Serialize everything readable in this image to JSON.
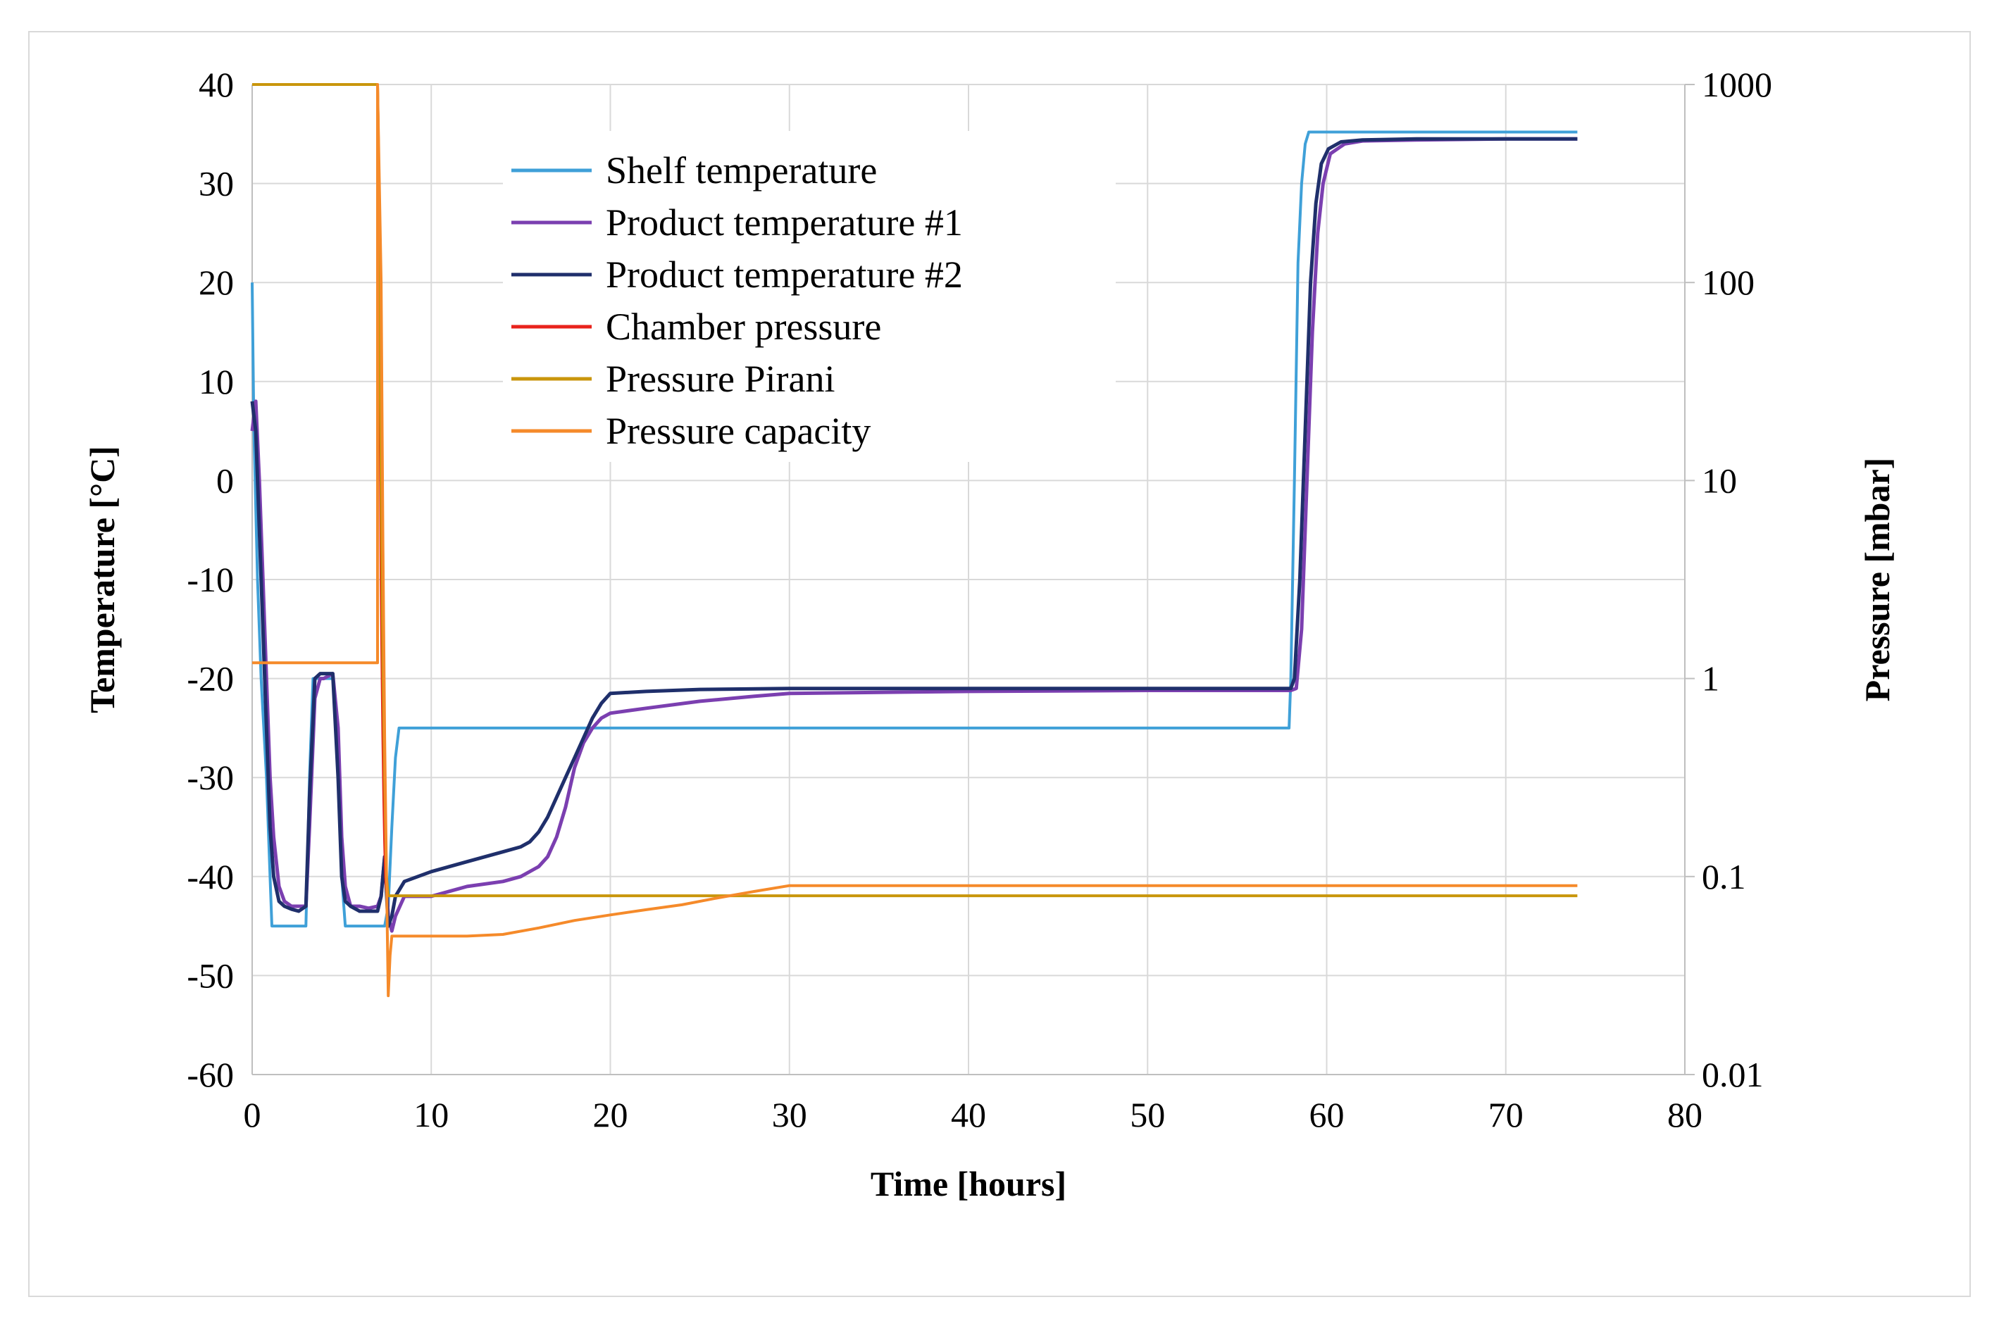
{
  "chart_data": {
    "type": "line",
    "title": "",
    "xlabel": "Time [hours]",
    "ylabel": "Temperature [°C]",
    "y2label": "Pressure [mbar]",
    "xlim": [
      0,
      80
    ],
    "ylim": [
      -60,
      40
    ],
    "y2lim": [
      0.01,
      1000
    ],
    "y2scale": "log",
    "grid": true,
    "legend_position": "top-center",
    "x_ticks": [
      "0",
      "10",
      "20",
      "30",
      "40",
      "50",
      "60",
      "70",
      "80"
    ],
    "y_ticks": [
      "40",
      "30",
      "20",
      "10",
      "0",
      "-10",
      "-20",
      "-30",
      "-40",
      "-50",
      "-60"
    ],
    "y2_ticks": [
      "1000",
      "100",
      "10",
      "1",
      "0.1",
      "0.01"
    ],
    "series": [
      {
        "name": "Shelf temperature",
        "axis": "left",
        "color": "#3fa0d8",
        "x": [
          0,
          0.05,
          0.1,
          0.3,
          0.5,
          0.8,
          1.0,
          1.1,
          1.5,
          2.0,
          2.5,
          3.0,
          3.2,
          3.4,
          3.6,
          4.0,
          4.5,
          4.8,
          5.0,
          5.2,
          5.5,
          6.0,
          6.5,
          7.0,
          7.4,
          7.6,
          7.8,
          8.0,
          8.2,
          20,
          40,
          57.9,
          58.0,
          58.2,
          58.4,
          58.6,
          58.8,
          59.0,
          59.2,
          60,
          65,
          70,
          74
        ],
        "y": [
          20,
          12,
          5,
          -10,
          -20,
          -30,
          -40,
          -45,
          -45,
          -45,
          -45,
          -45,
          -30,
          -20,
          -20,
          -20,
          -20,
          -25,
          -40,
          -45,
          -45,
          -45,
          -45,
          -45,
          -45,
          -43,
          -35,
          -28,
          -25,
          -25,
          -25,
          -25,
          -20,
          0,
          22,
          30,
          34,
          35.2,
          35.2,
          35.2,
          35.2,
          35.2,
          35.2
        ]
      },
      {
        "name": "Product temperature #1",
        "axis": "left",
        "color": "#7b3fb0",
        "x": [
          0,
          0.2,
          0.4,
          0.6,
          0.8,
          1.0,
          1.2,
          1.5,
          1.8,
          2.2,
          2.6,
          3.0,
          3.2,
          3.5,
          3.8,
          4.0,
          4.5,
          4.8,
          5.0,
          5.2,
          5.5,
          6.0,
          6.5,
          7.0,
          7.2,
          7.4,
          7.6,
          7.8,
          8.0,
          8.5,
          10,
          12,
          14,
          15,
          16,
          16.5,
          17,
          17.5,
          18,
          18.5,
          19,
          19.5,
          20,
          22,
          25,
          28,
          30,
          40,
          50,
          55,
          58,
          58.3,
          58.6,
          58.9,
          59.2,
          59.5,
          59.8,
          60.2,
          61,
          62,
          65,
          70,
          74
        ],
        "y": [
          5,
          8,
          0,
          -10,
          -20,
          -30,
          -36,
          -41,
          -42.5,
          -43,
          -43,
          -43,
          -35,
          -22,
          -20,
          -20,
          -19.5,
          -25,
          -36,
          -41,
          -43,
          -43,
          -43.2,
          -43,
          -42,
          -38,
          -44,
          -45.5,
          -44,
          -42,
          -42,
          -41,
          -40.5,
          -40,
          -39,
          -38,
          -36,
          -33,
          -29,
          -26.5,
          -25,
          -24,
          -23.5,
          -23,
          -22.3,
          -21.8,
          -21.5,
          -21.3,
          -21.2,
          -21.2,
          -21.2,
          -21,
          -15,
          0,
          15,
          25,
          30,
          33,
          34,
          34.3,
          34.4,
          34.5,
          34.5
        ]
      },
      {
        "name": "Product temperature #2",
        "axis": "left",
        "color": "#1f2f6b",
        "x": [
          0,
          0.2,
          0.4,
          0.6,
          0.8,
          1.0,
          1.2,
          1.5,
          1.8,
          2.2,
          2.6,
          3.0,
          3.2,
          3.5,
          3.8,
          4.0,
          4.5,
          4.8,
          5.0,
          5.2,
          5.5,
          6.0,
          6.5,
          7.0,
          7.2,
          7.4,
          7.6,
          7.8,
          8.0,
          8.5,
          10,
          12,
          14,
          15,
          15.5,
          16,
          16.5,
          17,
          17.5,
          18,
          18.5,
          19,
          19.5,
          20,
          22,
          25,
          30,
          40,
          50,
          55,
          58,
          58.2,
          58.5,
          58.8,
          59.1,
          59.4,
          59.7,
          60.1,
          60.8,
          62,
          65,
          70,
          74
        ],
        "y": [
          8,
          5,
          -5,
          -15,
          -25,
          -35,
          -40,
          -42.5,
          -43,
          -43.3,
          -43.5,
          -43,
          -32,
          -20,
          -19.5,
          -19.5,
          -19.5,
          -30,
          -40,
          -42.5,
          -43,
          -43.5,
          -43.5,
          -43.5,
          -42,
          -38,
          -45,
          -44,
          -42,
          -40.5,
          -39.5,
          -38.5,
          -37.5,
          -37,
          -36.5,
          -35.5,
          -34,
          -32,
          -30,
          -28,
          -26,
          -24,
          -22.5,
          -21.5,
          -21.3,
          -21.1,
          -21,
          -21,
          -21,
          -21,
          -21,
          -20,
          -10,
          5,
          20,
          28,
          32,
          33.5,
          34.2,
          34.4,
          34.5,
          34.5,
          34.5
        ]
      },
      {
        "name": "Chamber pressure",
        "axis": "right",
        "color": "#e8231c",
        "x": [
          7.0,
          7.05,
          7.1,
          7.15,
          7.2,
          7.25,
          7.3,
          7.35,
          7.4,
          7.45,
          7.5,
          7.55,
          7.6
        ],
        "y": [
          1000,
          500,
          100,
          20,
          3,
          1.2,
          0.5,
          0.25,
          0.15,
          0.1,
          0.085,
          0.08,
          0.08
        ]
      },
      {
        "name": "Pressure Pirani",
        "axis": "right",
        "color": "#c9960c",
        "x": [
          0,
          7.0,
          7.05,
          7.1,
          7.2,
          7.3,
          7.4,
          7.5,
          7.6,
          7.8,
          8,
          10,
          15,
          20,
          25,
          30,
          40,
          50,
          60,
          70,
          74
        ],
        "y": [
          1000,
          1000,
          500,
          100,
          10,
          1.2,
          0.3,
          0.1,
          0.08,
          0.08,
          0.08,
          0.08,
          0.08,
          0.08,
          0.08,
          0.08,
          0.08,
          0.08,
          0.08,
          0.08,
          0.08
        ]
      },
      {
        "name": "Pressure capacity",
        "axis": "right",
        "color": "#f58a2a",
        "x": [
          0,
          7.0,
          7.0,
          7.2,
          7.3,
          7.4,
          7.5,
          7.6,
          7.7,
          7.8,
          8,
          10,
          12,
          14,
          16,
          18,
          20,
          22,
          24,
          26,
          28,
          30,
          35,
          40,
          50,
          60,
          70,
          74
        ],
        "y": [
          1.2,
          1.2,
          1000,
          100,
          5,
          0.5,
          0.1,
          0.025,
          0.04,
          0.05,
          0.05,
          0.05,
          0.05,
          0.051,
          0.055,
          0.06,
          0.064,
          0.068,
          0.072,
          0.078,
          0.084,
          0.09,
          0.09,
          0.09,
          0.09,
          0.09,
          0.09,
          0.09
        ]
      }
    ]
  }
}
